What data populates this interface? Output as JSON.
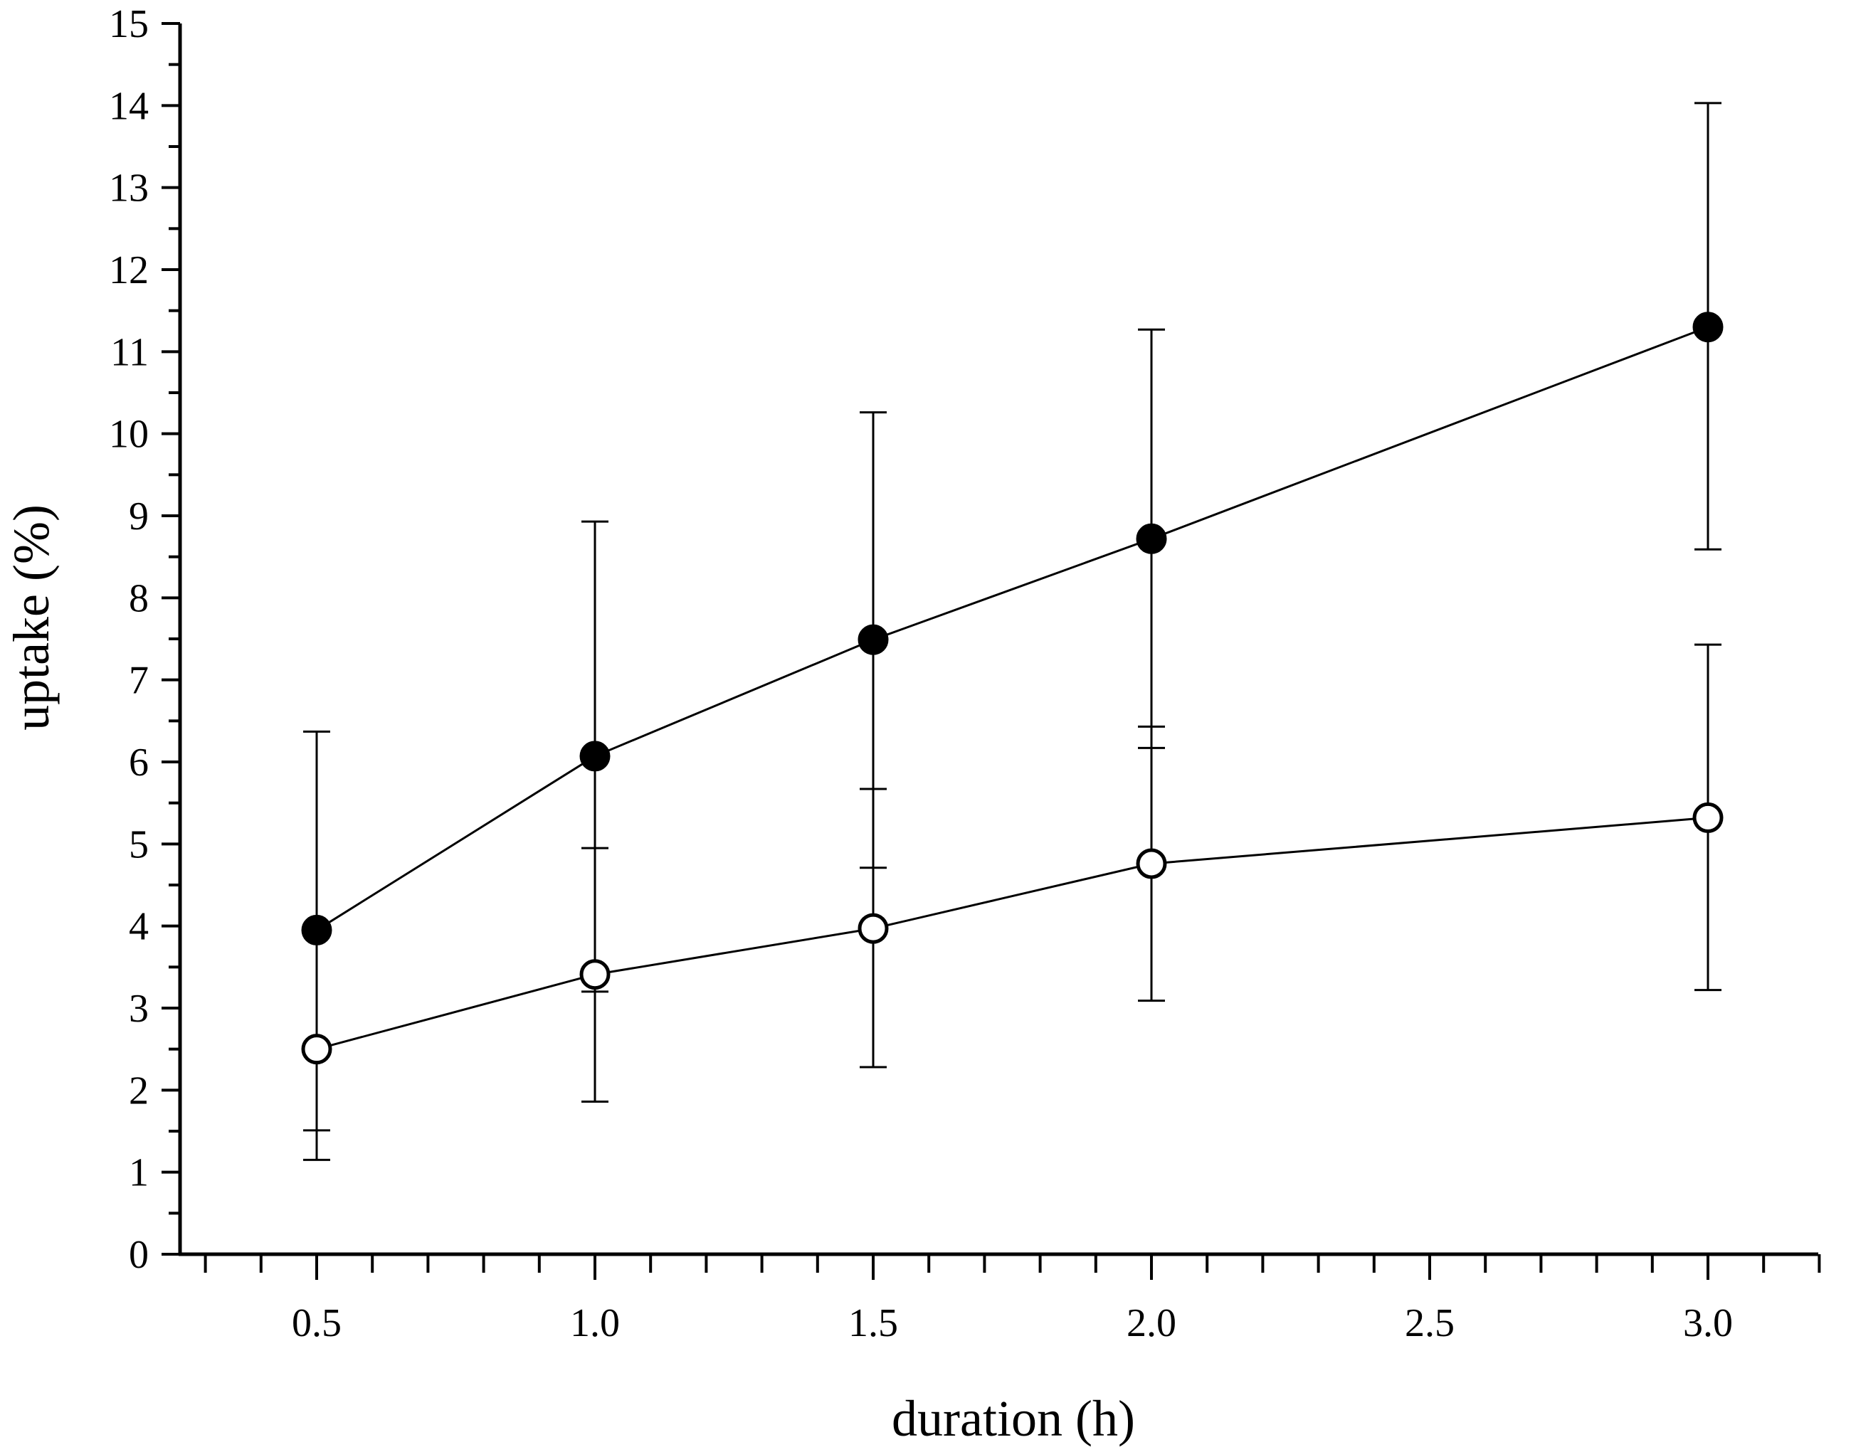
{
  "chart_data": {
    "type": "line",
    "title": "",
    "xlabel": "duration (h)",
    "ylabel": "uptake (%)",
    "xlim": [
      0.3,
      3.2
    ],
    "ylim": [
      0,
      15
    ],
    "xticks": [
      0.5,
      1.0,
      1.5,
      2.0,
      2.5,
      3.0
    ],
    "xtick_labels": [
      "0.5",
      "1.0",
      "1.5",
      "2.0",
      "2.5",
      "3.0"
    ],
    "yticks": [
      0,
      1,
      2,
      3,
      4,
      5,
      6,
      7,
      8,
      9,
      10,
      11,
      12,
      13,
      14,
      15
    ],
    "ytick_labels": [
      "0",
      "1",
      "2",
      "3",
      "4",
      "5",
      "6",
      "7",
      "8",
      "9",
      "10",
      "11",
      "12",
      "13",
      "14",
      "15"
    ],
    "grid": false,
    "legend": null,
    "series": [
      {
        "name": "filled circles",
        "marker": "filled-circle",
        "x": [
          0.5,
          1.0,
          1.5,
          2.0,
          3.0
        ],
        "y": [
          3.95,
          6.07,
          7.49,
          8.72,
          11.3
        ],
        "err_low": [
          1.15,
          3.2,
          4.71,
          6.17,
          8.59
        ],
        "err_high": [
          6.37,
          8.93,
          10.26,
          11.27,
          14.03
        ]
      },
      {
        "name": "open circles",
        "marker": "open-circle",
        "x": [
          0.5,
          1.0,
          1.5,
          2.0,
          3.0
        ],
        "y": [
          2.5,
          3.41,
          3.97,
          4.76,
          5.32
        ],
        "err_low": [
          1.51,
          1.86,
          2.28,
          3.09,
          3.22
        ],
        "err_high": [
          3.95,
          4.95,
          5.67,
          6.43,
          7.43
        ]
      }
    ]
  }
}
